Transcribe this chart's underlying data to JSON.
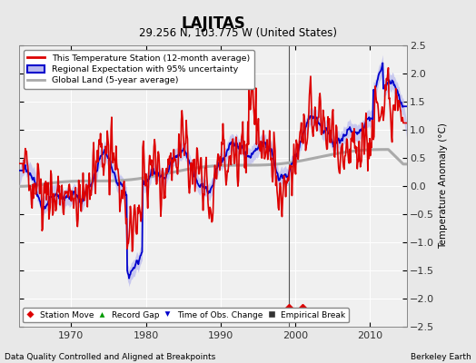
{
  "title": "LAJITAS",
  "subtitle": "29.256 N, 103.775 W (United States)",
  "ylabel": "Temperature Anomaly (°C)",
  "footer_left": "Data Quality Controlled and Aligned at Breakpoints",
  "footer_right": "Berkeley Earth",
  "xlim": [
    1963,
    2015
  ],
  "ylim": [
    -2.5,
    2.5
  ],
  "yticks": [
    -2.5,
    -2,
    -1.5,
    -1,
    -0.5,
    0,
    0.5,
    1,
    1.5,
    2,
    2.5
  ],
  "xticks": [
    1970,
    1980,
    1990,
    2000,
    2010
  ],
  "bg_color": "#e8e8e8",
  "plot_bg_color": "#f0f0f0",
  "grid_color": "#ffffff",
  "station_move_years": [
    1999.2,
    2001.0
  ],
  "vertical_line_year": 1999.2,
  "red_color": "#dd0000",
  "blue_color": "#0000cc",
  "blue_fill_color": "#b8b8ee",
  "gray_color": "#aaaaaa",
  "legend_labels": [
    "This Temperature Station (12-month average)",
    "Regional Expectation with 95% uncertainty",
    "Global Land (5-year average)"
  ],
  "bottom_legend_labels": [
    "Station Move",
    "Record Gap",
    "Time of Obs. Change",
    "Empirical Break"
  ],
  "bottom_legend_colors": [
    "#dd0000",
    "#009900",
    "#0000cc",
    "#333333"
  ],
  "bottom_legend_markers": [
    "D",
    "^",
    "v",
    "s"
  ]
}
